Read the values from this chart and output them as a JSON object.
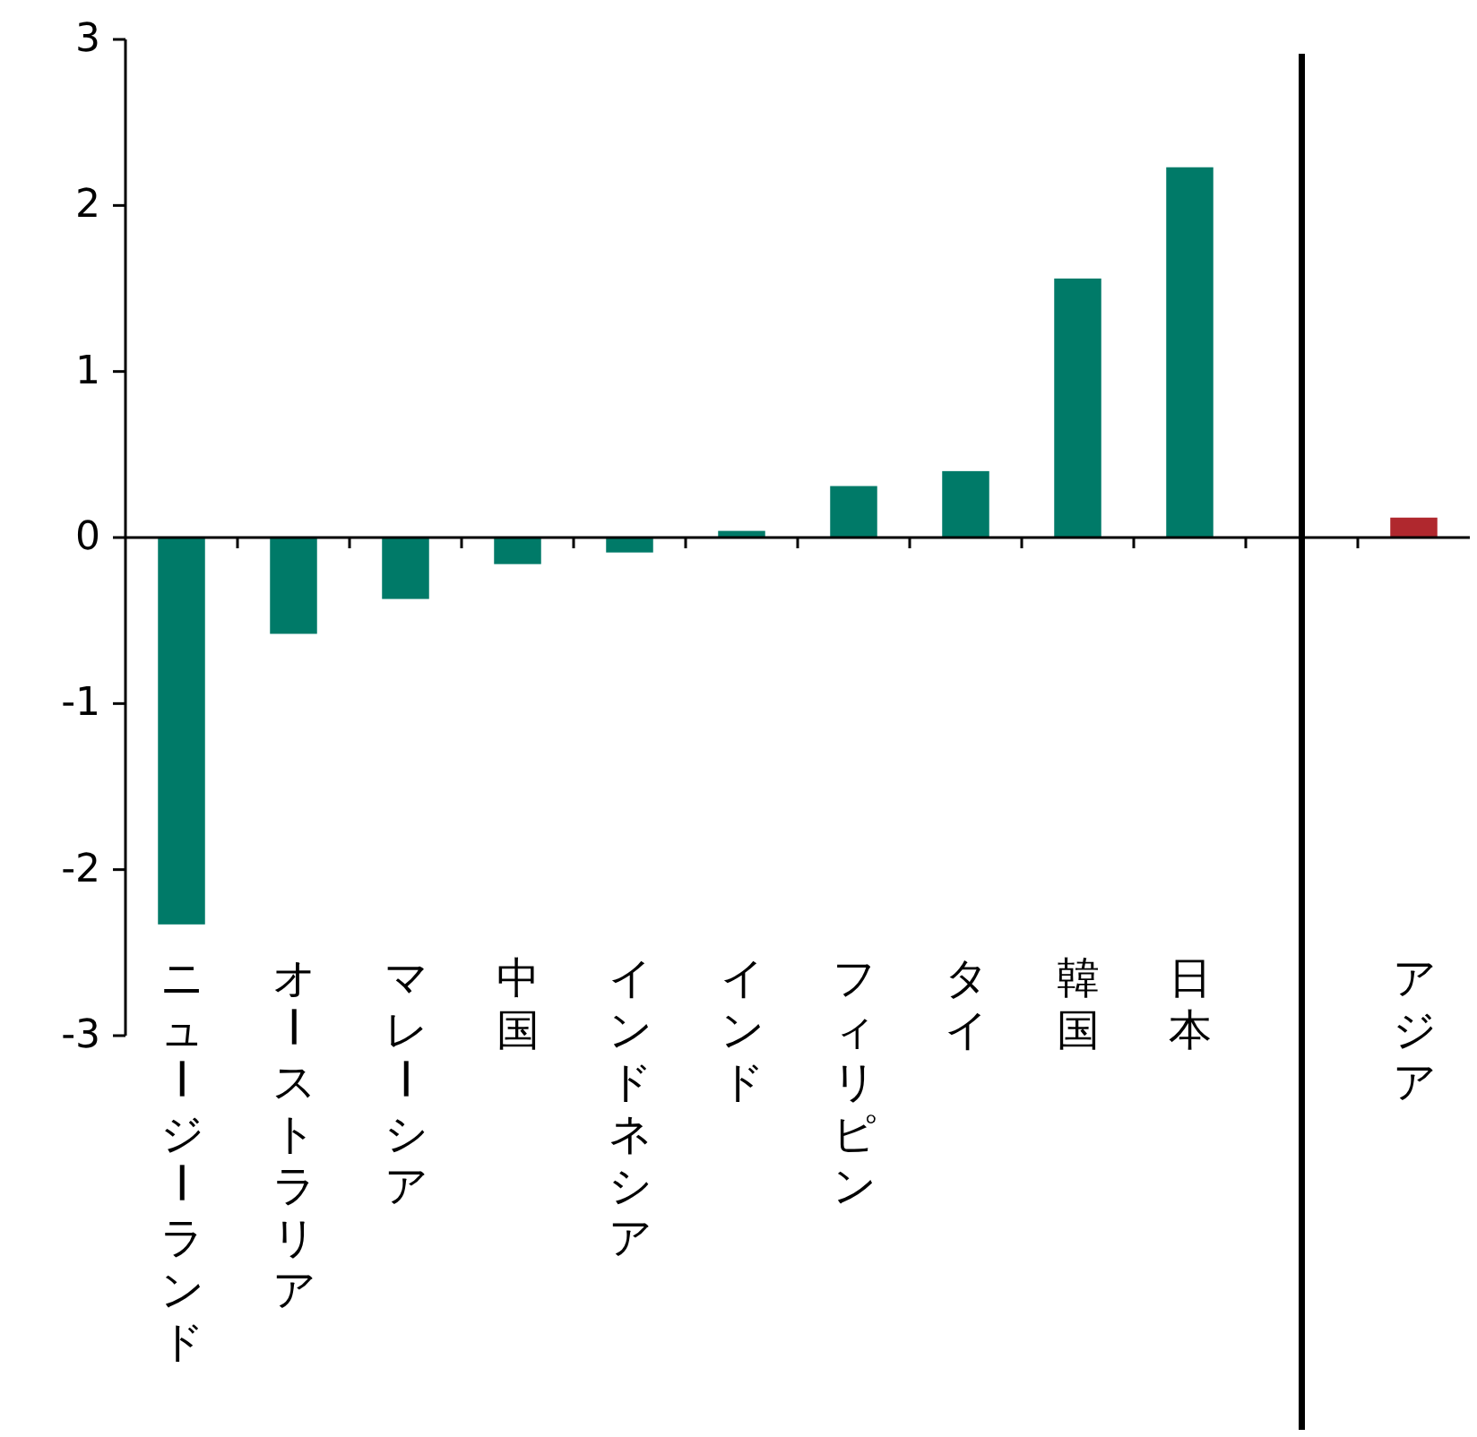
{
  "chart_data": {
    "type": "bar",
    "categories": [
      "ニュージーランド",
      "オーストラリア",
      "マレーシア",
      "中国",
      "インドネシア",
      "インド",
      "フィリピン",
      "タイ",
      "韓国",
      "日本",
      null,
      "アジア"
    ],
    "values": [
      -2.33,
      -0.58,
      -0.37,
      -0.16,
      -0.09,
      0.04,
      0.31,
      0.4,
      1.56,
      2.23,
      null,
      0.12
    ],
    "colors": [
      "#007a68",
      "#007a68",
      "#007a68",
      "#007a68",
      "#007a68",
      "#007a68",
      "#007a68",
      "#007a68",
      "#007a68",
      "#007a68",
      null,
      "#b0282e"
    ],
    "ylim": [
      -3,
      3
    ],
    "yticks": [
      -3,
      -2,
      -1,
      0,
      1,
      2,
      3
    ]
  }
}
